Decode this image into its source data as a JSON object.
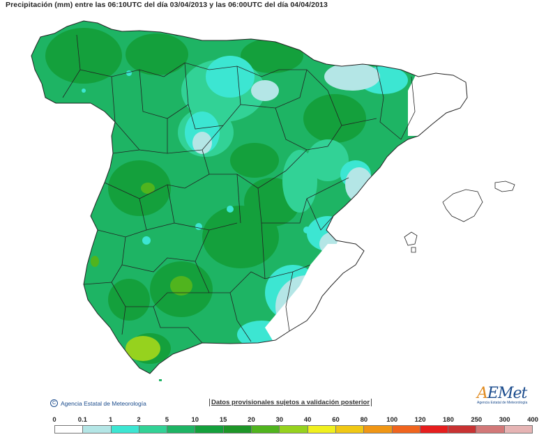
{
  "title": "Precipitación (mm) entre las 06:10UTC del día 03/04/2013 y las 06:00UTC del día 04/04/2013",
  "footer": {
    "copyright_symbol": "C",
    "copyright": "Agencia Estatal de Meteorología",
    "disclaimer": "Datos provisionales sujetos a validación posterior",
    "logo_mark_a": "A",
    "logo_mark_rest": "EMet",
    "logo_sub": "Agencia Estatal de Meteorología"
  },
  "legend": {
    "labels": [
      "0",
      "0.1",
      "1",
      "2",
      "5",
      "10",
      "15",
      "20",
      "30",
      "40",
      "60",
      "80",
      "100",
      "120",
      "180",
      "250",
      "300",
      "400"
    ],
    "colors": [
      "#ffffff",
      "#b4e6e6",
      "#3ce6d2",
      "#32d296",
      "#1eb464",
      "#14a03c",
      "#1e9628",
      "#50b41e",
      "#96d21e",
      "#f0f01e",
      "#f0c814",
      "#f09614",
      "#f0641e",
      "#e61e1e",
      "#c83232",
      "#d27878",
      "#e6b4b4"
    ]
  },
  "map": {
    "colors": {
      "sea": "#ffffff",
      "dry": "#ffffff",
      "very_light": "#b4e6e6",
      "light": "#3ce6d2",
      "moderate": "#32d296",
      "green": "#1eb464",
      "dark_green": "#14a03c",
      "lime": "#96d21e",
      "border": "#222222"
    }
  }
}
